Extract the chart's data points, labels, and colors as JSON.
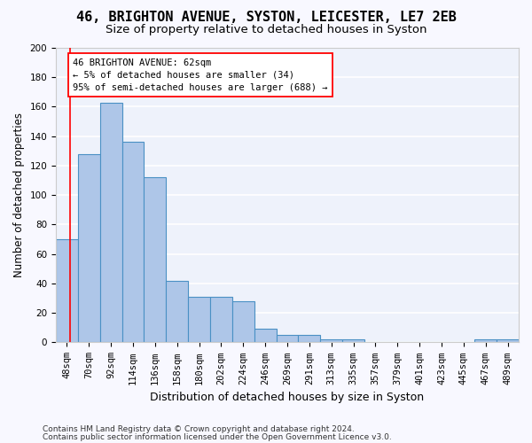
{
  "title1": "46, BRIGHTON AVENUE, SYSTON, LEICESTER, LE7 2EB",
  "title2": "Size of property relative to detached houses in Syston",
  "xlabel": "Distribution of detached houses by size in Syston",
  "ylabel": "Number of detached properties",
  "bar_color": "#aec6e8",
  "bar_edge_color": "#4a90c4",
  "categories": [
    "48sqm",
    "70sqm",
    "92sqm",
    "114sqm",
    "136sqm",
    "158sqm",
    "180sqm",
    "202sqm",
    "224sqm",
    "246sqm",
    "269sqm",
    "291sqm",
    "313sqm",
    "335sqm",
    "357sqm",
    "379sqm",
    "401sqm",
    "423sqm",
    "445sqm",
    "467sqm",
    "489sqm"
  ],
  "values": [
    70,
    128,
    163,
    136,
    112,
    42,
    31,
    31,
    28,
    9,
    5,
    5,
    2,
    2,
    0,
    0,
    0,
    0,
    0,
    2,
    2
  ],
  "ylim": [
    0,
    200
  ],
  "yticks": [
    0,
    20,
    40,
    60,
    80,
    100,
    120,
    140,
    160,
    180,
    200
  ],
  "annotation_text": "46 BRIGHTON AVENUE: 62sqm\n← 5% of detached houses are smaller (34)\n95% of semi-detached houses are larger (688) →",
  "footer1": "Contains HM Land Registry data © Crown copyright and database right 2024.",
  "footer2": "Contains public sector information licensed under the Open Government Licence v3.0.",
  "bg_color": "#eef2fb",
  "grid_color": "#ffffff",
  "title1_fontsize": 11,
  "title2_fontsize": 9.5,
  "xlabel_fontsize": 9,
  "ylabel_fontsize": 8.5,
  "tick_fontsize": 7.5,
  "annotation_fontsize": 7.5,
  "footer_fontsize": 6.5
}
